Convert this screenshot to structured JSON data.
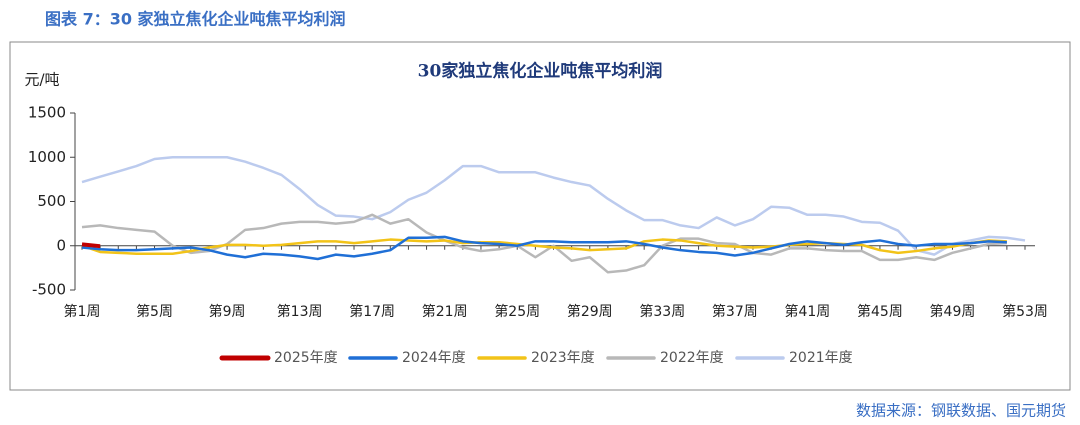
{
  "header": "图表 7：30 家独立焦化企业吨焦平均利润",
  "source": "数据来源：钢联数据、国元期货",
  "chart_data": {
    "type": "line",
    "title": "30家独立焦化企业吨焦平均利润",
    "y_label": "元/吨",
    "categories": [
      "第1周",
      null,
      null,
      null,
      "第5周",
      null,
      null,
      null,
      "第9周",
      null,
      null,
      null,
      "第13周",
      null,
      null,
      null,
      "第17周",
      null,
      null,
      null,
      "第21周",
      null,
      null,
      null,
      "第25周",
      null,
      null,
      null,
      "第29周",
      null,
      null,
      null,
      "第33周",
      null,
      null,
      null,
      "第37周",
      null,
      null,
      null,
      "第41周",
      null,
      null,
      null,
      "第45周",
      null,
      null,
      null,
      "第49周",
      null,
      null,
      null,
      "第53周"
    ],
    "ylim": [
      -500,
      1500
    ],
    "yticks": [
      -500,
      0,
      500,
      1000,
      1500
    ],
    "grid": false,
    "legend": "bottom",
    "series": [
      {
        "name": "2025年度",
        "color": "#c00000",
        "values": [
          15,
          -5,
          null,
          null,
          null,
          null,
          null,
          null,
          null,
          null,
          null,
          null,
          null,
          null,
          null,
          null,
          null,
          null,
          null,
          null,
          null,
          null,
          null,
          null,
          null,
          null,
          null,
          null,
          null,
          null,
          null,
          null,
          null,
          null,
          null,
          null,
          null,
          null,
          null,
          null,
          null,
          null,
          null,
          null,
          null,
          null,
          null,
          null,
          null,
          null,
          null,
          null,
          null
        ]
      },
      {
        "name": "2024年度",
        "color": "#1f6fd6",
        "values": [
          -20,
          -40,
          -50,
          -50,
          -40,
          -30,
          -20,
          -50,
          -100,
          -130,
          -90,
          -100,
          -120,
          -150,
          -100,
          -120,
          -90,
          -50,
          90,
          90,
          100,
          50,
          30,
          20,
          0,
          50,
          50,
          40,
          40,
          40,
          50,
          20,
          -20,
          -50,
          -70,
          -80,
          -110,
          -80,
          -30,
          20,
          50,
          30,
          10,
          40,
          60,
          20,
          0,
          20,
          20,
          30,
          50,
          40,
          null
        ]
      },
      {
        "name": "2023年度",
        "color": "#f2c318",
        "values": [
          0,
          -70,
          -80,
          -90,
          -90,
          -90,
          -60,
          -20,
          10,
          10,
          0,
          10,
          30,
          50,
          50,
          30,
          50,
          70,
          60,
          50,
          60,
          30,
          40,
          40,
          20,
          0,
          -20,
          -30,
          -50,
          -40,
          -30,
          50,
          70,
          60,
          30,
          0,
          -10,
          -20,
          -10,
          10,
          20,
          30,
          20,
          10,
          -50,
          -80,
          -60,
          -30,
          -10,
          30,
          60,
          50,
          null
        ]
      },
      {
        "name": "2022年度",
        "color": "#b8b8b8",
        "values": [
          210,
          230,
          200,
          180,
          160,
          0,
          -80,
          -60,
          20,
          180,
          200,
          250,
          270,
          270,
          250,
          270,
          350,
          250,
          300,
          150,
          60,
          -20,
          -60,
          -40,
          0,
          -130,
          0,
          -170,
          -130,
          -300,
          -280,
          -220,
          0,
          80,
          80,
          30,
          20,
          -80,
          -100,
          -30,
          -30,
          -50,
          -60,
          -60,
          -160,
          -160,
          -130,
          -160,
          -80,
          -30,
          20,
          30,
          null
        ]
      },
      {
        "name": "2021年度",
        "color": "#bccbee",
        "values": [
          720,
          780,
          840,
          900,
          980,
          1000,
          1000,
          1000,
          1000,
          950,
          880,
          800,
          640,
          460,
          340,
          330,
          300,
          380,
          520,
          600,
          740,
          900,
          900,
          830,
          830,
          830,
          770,
          720,
          680,
          530,
          400,
          290,
          290,
          230,
          200,
          320,
          230,
          300,
          440,
          430,
          350,
          350,
          330,
          270,
          260,
          170,
          -50,
          -100,
          20,
          60,
          100,
          90,
          60
        ]
      }
    ]
  }
}
